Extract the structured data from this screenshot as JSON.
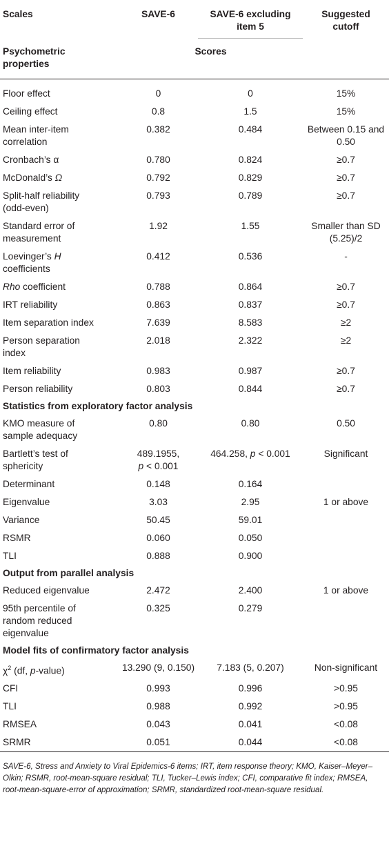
{
  "header": {
    "scales": "Scales",
    "save6": "SAVE-6",
    "save6_excl_line1": "SAVE-6 excluding",
    "save6_excl_line2": "item 5",
    "cutoff_line1": "Suggested",
    "cutoff_line2": "cutoff",
    "psychometric_line1": "Psychometric",
    "psychometric_line2": "properties",
    "scores": "Scores"
  },
  "rows_psychometric": [
    {
      "label": [
        "Floor effect"
      ],
      "save6": [
        "0"
      ],
      "excl": [
        "0"
      ],
      "cutoff": [
        "15%"
      ]
    },
    {
      "label": [
        "Ceiling effect"
      ],
      "save6": [
        "0.8"
      ],
      "excl": [
        "1.5"
      ],
      "cutoff": [
        "15%"
      ]
    },
    {
      "label": [
        "Mean inter-item",
        "correlation"
      ],
      "save6": [
        "0.382"
      ],
      "excl": [
        "0.484"
      ],
      "cutoff": [
        "Between 0.15 and",
        "0.50"
      ]
    },
    {
      "label": [
        "Cronbach’s α"
      ],
      "save6": [
        "0.780"
      ],
      "excl": [
        "0.824"
      ],
      "cutoff": [
        "≥0.7"
      ]
    },
    {
      "label": [
        "McDonald’s Ω"
      ],
      "save6": [
        "0.792"
      ],
      "excl": [
        "0.829"
      ],
      "cutoff": [
        "≥0.7"
      ]
    },
    {
      "label": [
        "Split-half reliability",
        "(odd-even)"
      ],
      "save6": [
        "0.793"
      ],
      "excl": [
        "0.789"
      ],
      "cutoff": [
        "≥0.7"
      ]
    },
    {
      "label": [
        "Standard error of",
        "measurement"
      ],
      "save6": [
        "1.92"
      ],
      "excl": [
        "1.55"
      ],
      "cutoff": [
        "Smaller than SD",
        "(5.25)/2"
      ]
    },
    {
      "label": [
        "Loevinger’s H",
        "coefficients"
      ],
      "save6": [
        "0.412"
      ],
      "excl": [
        "0.536"
      ],
      "cutoff": [
        "-"
      ]
    },
    {
      "label": [
        "Rho coefficient"
      ],
      "save6": [
        "0.788"
      ],
      "excl": [
        "0.864"
      ],
      "cutoff": [
        "≥0.7"
      ]
    },
    {
      "label": [
        "IRT reliability"
      ],
      "save6": [
        "0.863"
      ],
      "excl": [
        "0.837"
      ],
      "cutoff": [
        "≥0.7"
      ]
    },
    {
      "label": [
        "Item separation index"
      ],
      "save6": [
        "7.639"
      ],
      "excl": [
        "8.583"
      ],
      "cutoff": [
        "≥2"
      ]
    },
    {
      "label": [
        "Person separation",
        "index"
      ],
      "save6": [
        "2.018"
      ],
      "excl": [
        "2.322"
      ],
      "cutoff": [
        "≥2"
      ]
    },
    {
      "label": [
        "Item reliability"
      ],
      "save6": [
        "0.983"
      ],
      "excl": [
        "0.987"
      ],
      "cutoff": [
        "≥0.7"
      ]
    },
    {
      "label": [
        "Person reliability"
      ],
      "save6": [
        "0.803"
      ],
      "excl": [
        "0.844"
      ],
      "cutoff": [
        "≥0.7"
      ]
    }
  ],
  "section_efa": "Statistics from exploratory factor analysis",
  "rows_efa": [
    {
      "label": [
        "KMO measure of",
        "sample adequacy"
      ],
      "save6": [
        "0.80"
      ],
      "excl": [
        "0.80"
      ],
      "cutoff": [
        "0.50"
      ]
    },
    {
      "label": [
        "Bartlett’s test of",
        "sphericity"
      ],
      "save6": [
        "489.1955,",
        "p < 0.001"
      ],
      "excl": [
        "464.258, p < 0.001"
      ],
      "cutoff": [
        "Significant"
      ]
    },
    {
      "label": [
        "Determinant"
      ],
      "save6": [
        "0.148"
      ],
      "excl": [
        "0.164"
      ],
      "cutoff": [
        ""
      ]
    },
    {
      "label": [
        "Eigenvalue"
      ],
      "save6": [
        "3.03"
      ],
      "excl": [
        "2.95"
      ],
      "cutoff": [
        "1 or above"
      ]
    },
    {
      "label": [
        "Variance"
      ],
      "save6": [
        "50.45"
      ],
      "excl": [
        "59.01"
      ],
      "cutoff": [
        ""
      ]
    },
    {
      "label": [
        "RSMR"
      ],
      "save6": [
        "0.060"
      ],
      "excl": [
        "0.050"
      ],
      "cutoff": [
        ""
      ]
    },
    {
      "label": [
        "TLI"
      ],
      "save6": [
        "0.888"
      ],
      "excl": [
        "0.900"
      ],
      "cutoff": [
        ""
      ]
    }
  ],
  "section_parallel": "Output from parallel analysis",
  "rows_parallel": [
    {
      "label": [
        "Reduced eigenvalue"
      ],
      "save6": [
        "2.472"
      ],
      "excl": [
        "2.400"
      ],
      "cutoff": [
        "1 or above"
      ]
    },
    {
      "label": [
        "95th percentile of",
        "random reduced",
        "eigenvalue"
      ],
      "save6": [
        "0.325"
      ],
      "excl": [
        "0.279"
      ],
      "cutoff": [
        ""
      ]
    }
  ],
  "section_cfa": "Model fits of confirmatory factor analysis",
  "rows_cfa": [
    {
      "label": [
        "χ2 (df, p-value)"
      ],
      "save6": [
        "13.290 (9, 0.150)"
      ],
      "excl": [
        "7.183 (5, 0.207)"
      ],
      "cutoff": [
        "Non-significant"
      ]
    },
    {
      "label": [
        "CFI"
      ],
      "save6": [
        "0.993"
      ],
      "excl": [
        "0.996"
      ],
      "cutoff": [
        ">0.95"
      ]
    },
    {
      "label": [
        "TLI"
      ],
      "save6": [
        "0.988"
      ],
      "excl": [
        "0.992"
      ],
      "cutoff": [
        ">0.95"
      ]
    },
    {
      "label": [
        "RMSEA"
      ],
      "save6": [
        "0.043"
      ],
      "excl": [
        "0.041"
      ],
      "cutoff": [
        "<0.08"
      ]
    },
    {
      "label": [
        "SRMR"
      ],
      "save6": [
        "0.051"
      ],
      "excl": [
        "0.044"
      ],
      "cutoff": [
        "<0.08"
      ]
    }
  ],
  "footnote": "SAVE-6, Stress and Anxiety to Viral Epidemics-6 items; IRT, item response theory; KMO, Kaiser–Meyer–Olkin; RSMR, root-mean-square residual; TLI, Tucker–Lewis index; CFI, comparative fit index; RMSEA, root-mean-square-error of approximation; SRMR, standardized root-mean-square residual."
}
